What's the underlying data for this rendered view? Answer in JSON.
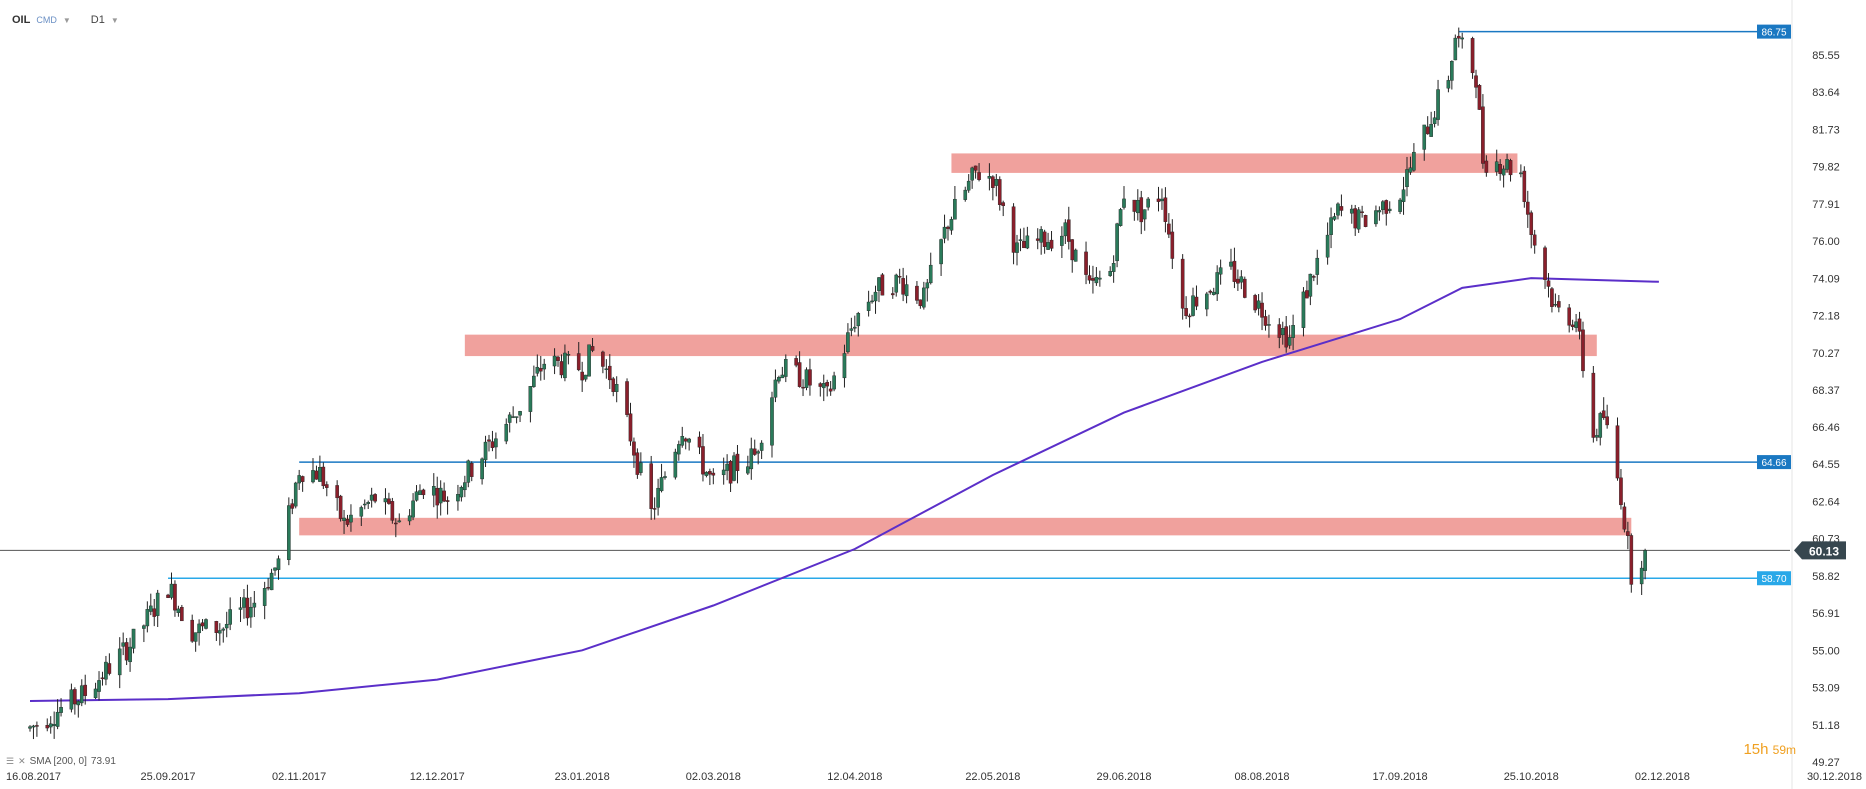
{
  "header": {
    "symbol": "OIL",
    "group": "CMD",
    "timeframe": "D1"
  },
  "countdown": {
    "hours": "15h",
    "minutes": "59m"
  },
  "indicator": {
    "label": "SMA [200, 0]",
    "value": "73.91",
    "color": "#5b2fc9"
  },
  "colors": {
    "up": "#2a7a5a",
    "down": "#8a1f2b",
    "zone": "#f0a19d",
    "level": "#1a78c2",
    "current": "#37474f"
  },
  "chart_data": {
    "type": "candlestick",
    "yticks": [
      "85.55",
      "83.64",
      "81.73",
      "79.82",
      "77.91",
      "76.00",
      "74.09",
      "72.18",
      "70.27",
      "68.37",
      "66.46",
      "64.55",
      "62.64",
      "60.73",
      "58.82",
      "56.91",
      "55.00",
      "53.09",
      "51.18",
      "49.27"
    ],
    "xticks": [
      "16.08.2017",
      "25.09.2017",
      "02.11.2017",
      "12.12.2017",
      "23.01.2018",
      "02.03.2018",
      "12.04.2018",
      "22.05.2018",
      "29.06.2018",
      "08.08.2018",
      "17.09.2018",
      "25.10.2018",
      "02.12.2018",
      "30.12.2018"
    ],
    "ylim": [
      49.27,
      87.5
    ],
    "current_price": "60.13",
    "price_path": [
      [
        "16.08.2017",
        51.0
      ],
      [
        "01.09.2017",
        52.8
      ],
      [
        "15.09.2017",
        55.5
      ],
      [
        "25.09.2017",
        58.3
      ],
      [
        "02.10.2017",
        56.0
      ],
      [
        "11.10.2017",
        56.2
      ],
      [
        "20.10.2017",
        57.5
      ],
      [
        "27.10.2017",
        59.5
      ],
      [
        "02.11.2017",
        64.3
      ],
      [
        "08.11.2017",
        64.1
      ],
      [
        "15.11.2017",
        61.5
      ],
      [
        "24.11.2017",
        62.8
      ],
      [
        "01.12.2017",
        61.5
      ],
      [
        "08.12.2017",
        63.5
      ],
      [
        "15.12.2017",
        62.8
      ],
      [
        "27.12.2017",
        65.5
      ],
      [
        "05.01.2018",
        67.5
      ],
      [
        "12.01.2018",
        69.8
      ],
      [
        "23.01.2018",
        69.5
      ],
      [
        "26.01.2018",
        70.3
      ],
      [
        "01.02.2018",
        68.9
      ],
      [
        "06.02.2018",
        66.0
      ],
      [
        "12.02.2018",
        62.0
      ],
      [
        "16.02.2018",
        64.0
      ],
      [
        "21.02.2018",
        66.5
      ],
      [
        "27.02.2018",
        64.5
      ],
      [
        "02.03.2018",
        63.5
      ],
      [
        "09.03.2018",
        64.5
      ],
      [
        "14.03.2018",
        65.0
      ],
      [
        "21.03.2018",
        69.5
      ],
      [
        "28.03.2018",
        69.0
      ],
      [
        "04.04.2018",
        68.0
      ],
      [
        "12.04.2018",
        72.0
      ],
      [
        "18.04.2018",
        73.5
      ],
      [
        "25.04.2018",
        74.0
      ],
      [
        "02.05.2018",
        73.0
      ],
      [
        "09.05.2018",
        77.0
      ],
      [
        "17.05.2018",
        79.5
      ],
      [
        "22.05.2018",
        79.3
      ],
      [
        "29.05.2018",
        75.5
      ],
      [
        "05.06.2018",
        76.0
      ],
      [
        "12.06.2018",
        76.5
      ],
      [
        "19.06.2018",
        73.5
      ],
      [
        "25.06.2018",
        74.5
      ],
      [
        "29.06.2018",
        78.5
      ],
      [
        "04.07.2018",
        77.5
      ],
      [
        "10.07.2018",
        78.5
      ],
      [
        "16.07.2018",
        72.5
      ],
      [
        "23.07.2018",
        73.5
      ],
      [
        "30.07.2018",
        74.5
      ],
      [
        "08.08.2018",
        72.5
      ],
      [
        "16.08.2018",
        71.0
      ],
      [
        "23.08.2018",
        74.5
      ],
      [
        "30.08.2018",
        77.5
      ],
      [
        "06.09.2018",
        77.0
      ],
      [
        "17.09.2018",
        78.5
      ],
      [
        "24.09.2018",
        81.5
      ],
      [
        "01.10.2018",
        84.5
      ],
      [
        "03.10.2018",
        86.5
      ],
      [
        "09.10.2018",
        84.5
      ],
      [
        "11.10.2018",
        80.2
      ],
      [
        "17.10.2018",
        80.0
      ],
      [
        "22.10.2018",
        79.5
      ],
      [
        "25.10.2018",
        76.5
      ],
      [
        "01.11.2018",
        72.5
      ],
      [
        "07.11.2018",
        72.0
      ],
      [
        "12.11.2018",
        66.0
      ],
      [
        "15.11.2018",
        67.0
      ],
      [
        "20.11.2018",
        63.0
      ],
      [
        "23.11.2018",
        59.0
      ],
      [
        "27.11.2018",
        60.1
      ]
    ],
    "sma": [
      [
        "16.08.2017",
        52.4
      ],
      [
        "25.09.2017",
        52.5
      ],
      [
        "02.11.2017",
        52.8
      ],
      [
        "12.12.2017",
        53.5
      ],
      [
        "23.01.2018",
        55.0
      ],
      [
        "02.03.2018",
        57.3
      ],
      [
        "12.04.2018",
        60.2
      ],
      [
        "22.05.2018",
        64.0
      ],
      [
        "29.06.2018",
        67.2
      ],
      [
        "08.08.2018",
        69.8
      ],
      [
        "17.09.2018",
        72.0
      ],
      [
        "05.10.2018",
        73.6
      ],
      [
        "25.10.2018",
        74.1
      ],
      [
        "01.12.2018",
        73.91
      ]
    ],
    "zones": [
      {
        "from": "10.05.2018",
        "to": "21.10.2018",
        "low": 79.5,
        "high": 80.5
      },
      {
        "from": "20.12.2017",
        "to": "13.11.2018",
        "low": 70.1,
        "high": 71.2
      },
      {
        "from": "02.11.2017",
        "to": "23.11.2018",
        "low": 60.9,
        "high": 61.8
      }
    ],
    "levels": [
      {
        "value": 86.75,
        "label": "86.75",
        "from": "04.10.2018",
        "color": "#1a78c2"
      },
      {
        "value": 64.66,
        "label": "64.66",
        "from": "02.11.2017",
        "color": "#1a78c2"
      },
      {
        "value": 58.7,
        "label": "58.70",
        "from": "25.09.2017",
        "color": "#29a8e8"
      }
    ]
  }
}
